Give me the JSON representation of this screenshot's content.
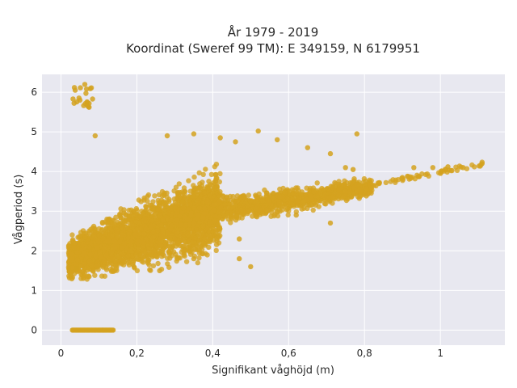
{
  "chart_data": {
    "type": "scatter",
    "title_line1": "År 1979 - 2019",
    "title_line2": "Koordinat (Sweref 99 TM): E 349159, N 6179951",
    "xlabel": "Signifikant våghöjd (m)",
    "ylabel": "Vågperiod (s)",
    "xlim": [
      -0.05,
      1.17
    ],
    "ylim": [
      -0.38,
      6.45
    ],
    "x_ticks": [
      0,
      0.2,
      0.4,
      0.6,
      0.8,
      1
    ],
    "x_tick_labels": [
      "0",
      "0,2",
      "0,4",
      "0,6",
      "0,8",
      "1"
    ],
    "y_ticks": [
      0,
      1,
      2,
      3,
      4,
      5,
      6
    ],
    "y_tick_labels": [
      "0",
      "1",
      "2",
      "3",
      "4",
      "5",
      "6"
    ],
    "grid": true,
    "background": "#e8e8f0",
    "point_color": "#d4a21f",
    "clusters": [
      {
        "name": "zero-period row",
        "kind": "hline",
        "x": [
          0.03,
          0.14
        ],
        "y": 0
      },
      {
        "name": "low-height outliers",
        "kind": "blob",
        "x": [
          0.025,
          0.085
        ],
        "y": [
          5.5,
          6.2
        ]
      },
      {
        "name": "main cloud",
        "kind": "band",
        "x_range": [
          0.02,
          0.42
        ],
        "y_low_at_start": 1.05,
        "y_high_at_start": 2.5,
        "y_low_at_end": 1.6,
        "y_high_at_end": 4.5
      },
      {
        "name": "upper trend band",
        "kind": "band",
        "x_range": [
          0.3,
          0.82
        ],
        "y_low_at_start": 2.3,
        "y_high_at_start": 3.4,
        "y_low_at_end": 3.3,
        "y_high_at_end": 3.9
      },
      {
        "name": "high tail",
        "kind": "line",
        "x": [
          0.8,
          1.11
        ],
        "y": [
          3.6,
          4.2
        ]
      }
    ],
    "points": [
      {
        "x": 0.09,
        "y": 4.9
      },
      {
        "x": 0.52,
        "y": 5.02
      },
      {
        "x": 0.78,
        "y": 4.95
      },
      {
        "x": 0.42,
        "y": 4.85
      },
      {
        "x": 0.28,
        "y": 4.9
      },
      {
        "x": 0.35,
        "y": 4.95
      },
      {
        "x": 0.46,
        "y": 4.75
      },
      {
        "x": 0.57,
        "y": 4.8
      },
      {
        "x": 0.65,
        "y": 4.6
      },
      {
        "x": 0.71,
        "y": 4.45
      },
      {
        "x": 0.75,
        "y": 4.1
      },
      {
        "x": 0.77,
        "y": 4.05
      },
      {
        "x": 0.93,
        "y": 4.1
      },
      {
        "x": 0.98,
        "y": 4.1
      },
      {
        "x": 1.02,
        "y": 4.12
      },
      {
        "x": 1.06,
        "y": 4.1
      },
      {
        "x": 1.11,
        "y": 4.2
      },
      {
        "x": 0.56,
        "y": 3.45
      },
      {
        "x": 0.62,
        "y": 2.9
      },
      {
        "x": 0.71,
        "y": 2.7
      },
      {
        "x": 0.47,
        "y": 2.3
      },
      {
        "x": 0.47,
        "y": 1.8
      },
      {
        "x": 0.5,
        "y": 1.6
      },
      {
        "x": 0.35,
        "y": 1.8
      },
      {
        "x": 0.04,
        "y": 1.55
      },
      {
        "x": 0.26,
        "y": 1.5
      }
    ]
  }
}
